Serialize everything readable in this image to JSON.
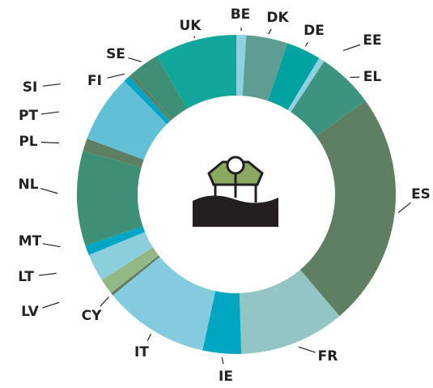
{
  "chart_data": {
    "type": "donut",
    "categories": [
      "BE",
      "DK",
      "DE",
      "EE",
      "EL",
      "ES",
      "FR",
      "IE",
      "IT",
      "CY",
      "LV",
      "LT",
      "MT",
      "NL",
      "PL",
      "PT",
      "SI",
      "FI",
      "SE",
      "UK"
    ],
    "values": [
      1,
      4.2,
      3.5,
      0.6,
      5.7,
      23.8,
      10.7,
      3.9,
      10.7,
      0.3,
      1.6,
      2.8,
      1,
      9.6,
      1.3,
      6.9,
      0.7,
      0.4,
      3,
      8.3
    ],
    "colors": [
      "#8fd0e0",
      "#5f9c94",
      "#00a3a0",
      "#8fd0e0",
      "#3c9480",
      "#5f7f62",
      "#92c5c4",
      "#00a6c2",
      "#85cbe0",
      "#5f7f62",
      "#93b785",
      "#8ccfdc",
      "#00a7c5",
      "#3e8f75",
      "#5f7f62",
      "#62c0d6",
      "#00a3c2",
      "#5f7f62",
      "#3e8f75",
      "#12a79a"
    ]
  }
}
